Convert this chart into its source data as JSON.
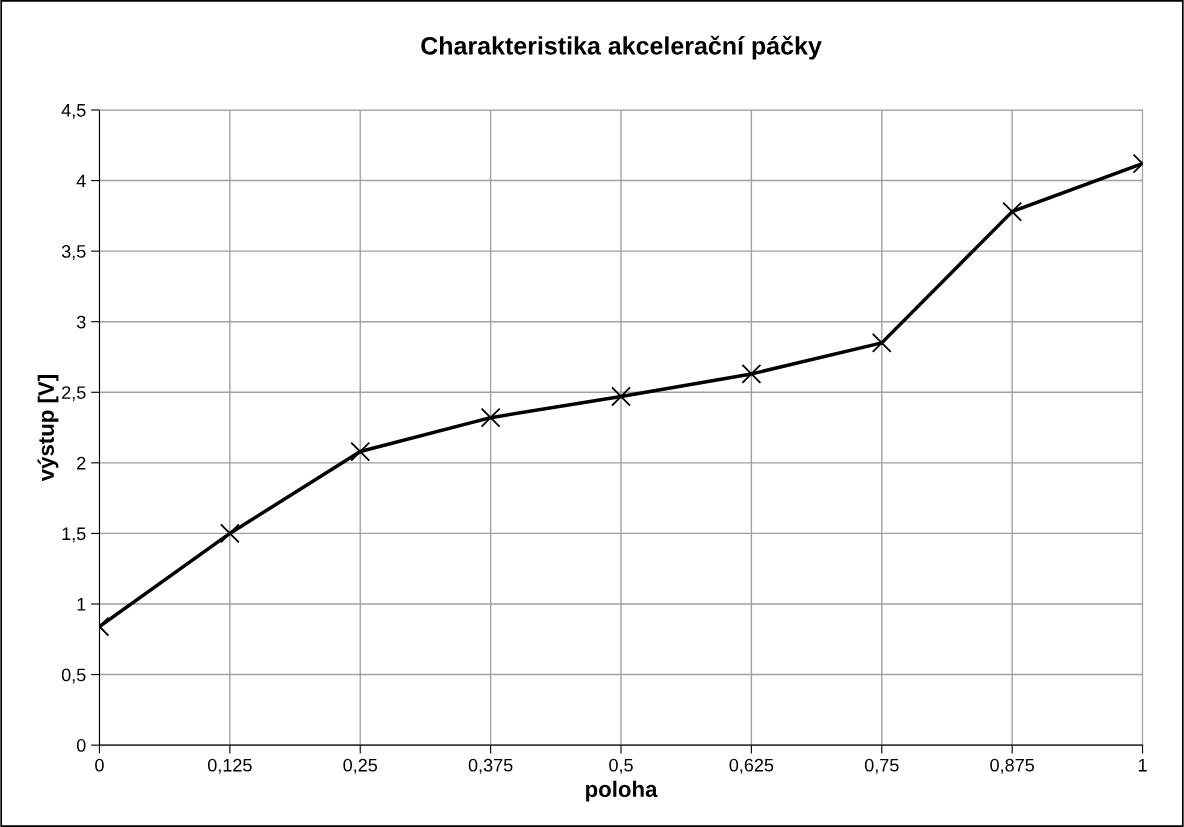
{
  "chart_data": {
    "type": "line",
    "title": "Charakteristika akcelerační páčky",
    "xlabel": "poloha",
    "ylabel": "výstup [V]",
    "x": [
      0,
      0.125,
      0.25,
      0.375,
      0.5,
      0.625,
      0.75,
      0.875,
      1
    ],
    "series": [
      {
        "color": "#000000",
        "values": [
          0.84,
          1.5,
          2.08,
          2.32,
          2.47,
          2.63,
          2.85,
          3.78,
          4.12
        ]
      }
    ],
    "xlim": [
      0,
      1
    ],
    "xticks": [
      0,
      {
        "value": 0.125,
        "label": "0,125"
      },
      {
        "value": 0.25,
        "label": "0,25"
      },
      {
        "value": 0.375,
        "label": "0,375"
      },
      {
        "value": 0.5,
        "label": "0,5"
      },
      {
        "value": 0.625,
        "label": "0,625"
      },
      {
        "value": 0.75,
        "label": "0,75"
      },
      {
        "value": 0.875,
        "label": "0,875"
      },
      1
    ],
    "ylim": [
      0,
      4.5
    ],
    "yticks": [
      0,
      {
        "value": 0.5,
        "label": "0,5"
      },
      1,
      {
        "value": 1.5,
        "label": "1,5"
      },
      2,
      {
        "value": 2.5,
        "label": "2,5"
      },
      3,
      {
        "value": 3.5,
        "label": "3,5"
      },
      4,
      {
        "value": 4.5,
        "label": "4,5"
      }
    ],
    "grid": true,
    "marker": "cross",
    "line_style": "solid"
  }
}
